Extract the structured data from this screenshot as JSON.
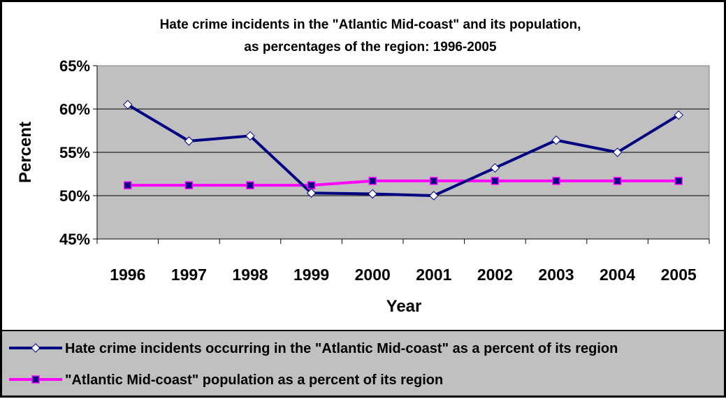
{
  "chart_data": {
    "type": "line",
    "title_line1": "Hate crime incidents in the \"Atlantic Mid-coast\" and its population,",
    "title_line2": "as percentages of the region: 1996-2005",
    "xlabel": "Year",
    "ylabel": "Percent",
    "categories": [
      "1996",
      "1997",
      "1998",
      "1999",
      "2000",
      "2001",
      "2002",
      "2003",
      "2004",
      "2005"
    ],
    "ylim": [
      45,
      65
    ],
    "yticks": [
      45,
      50,
      55,
      60,
      65
    ],
    "ytick_labels": [
      "45%",
      "50%",
      "55%",
      "60%",
      "65%"
    ],
    "grid": true,
    "plot_background": "#c0c0c0",
    "legend_position": "bottom",
    "series": [
      {
        "name": "Hate crime incidents occurring in the \"Atlantic Mid-coast\" as a percent of its region",
        "values": [
          60.5,
          56.3,
          56.9,
          50.3,
          50.2,
          50.0,
          53.2,
          56.4,
          55.0,
          59.3
        ],
        "line_color": "#000080",
        "marker": "diamond",
        "marker_color": "#ffffff"
      },
      {
        "name": "\"Atlantic Mid-coast\" population as a percent of its region",
        "values": [
          51.2,
          51.2,
          51.2,
          51.2,
          51.7,
          51.7,
          51.7,
          51.7,
          51.7,
          51.7
        ],
        "line_color": "#ff00ff",
        "marker": "square",
        "marker_color": "#000080"
      }
    ]
  }
}
